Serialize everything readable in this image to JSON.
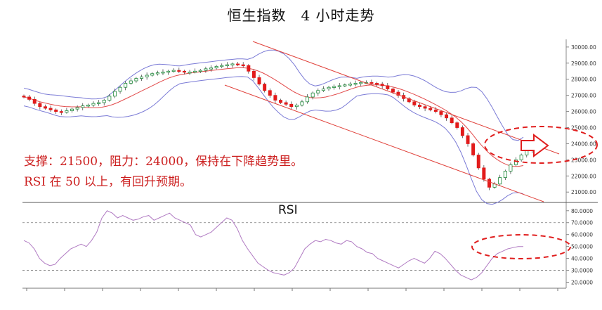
{
  "title": "恒生指数　4 小时走势",
  "annotations": {
    "line1": "支撑：21500，阻力：24000，保持在下降趋势里。",
    "line2": "RSI 在 50 以上，有回升预期。"
  },
  "colors": {
    "up": "#1f8a3a",
    "down": "#e21b1b",
    "bollinger_outer": "#7b7bd6",
    "bollinger_mid": "#e24a4a",
    "trendline": "#e0413a",
    "rsi_line": "#b07ac2",
    "annotation": "#cc1f1f",
    "grid": "#999999"
  },
  "chart_data": [
    {
      "type": "candlestick",
      "title": "恒生指数　4 小时走势",
      "y_axis_position": "right",
      "ylim": [
        20400,
        30300
      ],
      "yticks": [
        "21000.00",
        "22000.00",
        "23000.00",
        "24000.00",
        "25000.00",
        "26000.00",
        "27000.00",
        "28000.00",
        "29000.00",
        "30000.00"
      ],
      "close": [
        26900,
        26750,
        26500,
        26300,
        26200,
        26100,
        26000,
        25950,
        26050,
        26150,
        26250,
        26350,
        26400,
        26500,
        26550,
        26700,
        26950,
        27250,
        27500,
        27750,
        27900,
        28050,
        28150,
        28250,
        28350,
        28400,
        28450,
        28500,
        28550,
        28500,
        28450,
        28450,
        28500,
        28550,
        28650,
        28700,
        28800,
        28850,
        28900,
        28950,
        28900,
        28850,
        28500,
        28100,
        27700,
        27300,
        27000,
        26700,
        26550,
        26450,
        26300,
        26400,
        26600,
        26900,
        27150,
        27300,
        27400,
        27500,
        27550,
        27600,
        27650,
        27700,
        27750,
        27800,
        27800,
        27750,
        27700,
        27600,
        27400,
        27200,
        27000,
        26800,
        26600,
        26400,
        26300,
        26200,
        26100,
        26000,
        25800,
        25600,
        25300,
        25000,
        24500,
        24000,
        23300,
        22500,
        21800,
        21300,
        21500,
        21900,
        22300,
        22700,
        23000,
        23300,
        23600,
        23850,
        24000
      ],
      "rsi": {
        "ylim": [
          15,
          84
        ],
        "yticks": [
          "20.0000",
          "30.0000",
          "40.0000",
          "50.0000",
          "60.0000",
          "70.0000",
          "80.0000"
        ],
        "overbought": 70,
        "oversold": 30,
        "values": [
          55,
          53,
          48,
          40,
          36,
          34,
          35,
          40,
          44,
          48,
          50,
          52,
          50,
          55,
          62,
          74,
          80,
          78,
          74,
          76,
          74,
          72,
          73,
          75,
          76,
          72,
          74,
          76,
          78,
          74,
          72,
          70,
          68,
          60,
          58,
          60,
          62,
          66,
          70,
          74,
          72,
          65,
          55,
          48,
          42,
          36,
          33,
          30,
          28,
          27,
          26,
          28,
          32,
          40,
          48,
          52,
          55,
          54,
          56,
          55,
          53,
          52,
          55,
          54,
          50,
          48,
          45,
          44,
          40,
          38,
          36,
          34,
          32,
          35,
          38,
          40,
          38,
          36,
          40,
          46,
          44,
          40,
          35,
          30,
          26,
          24,
          22,
          24,
          28,
          34,
          40,
          44,
          46,
          48,
          49,
          50,
          50
        ],
        "label": "RSI"
      }
    }
  ]
}
